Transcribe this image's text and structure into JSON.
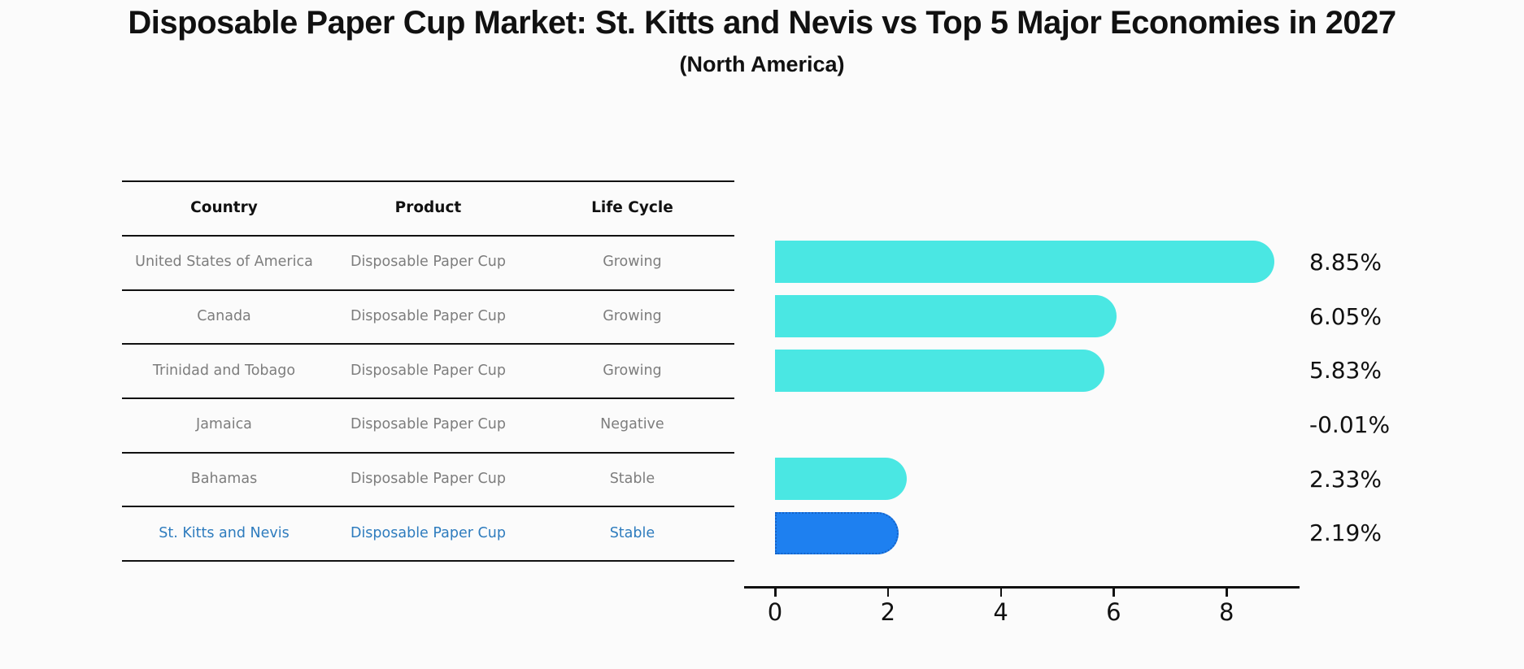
{
  "title": "Disposable Paper Cup Market: St. Kitts and Nevis vs Top 5 Major Economies in 2027",
  "subtitle": "(North America)",
  "table": {
    "headers": [
      "Country",
      "Product",
      "Life Cycle"
    ],
    "rows": [
      {
        "country": "United States of America",
        "product": "Disposable Paper Cup",
        "life_cycle": "Growing"
      },
      {
        "country": "Canada",
        "product": "Disposable Paper Cup",
        "life_cycle": "Growing"
      },
      {
        "country": "Trinidad and Tobago",
        "product": "Disposable Paper Cup",
        "life_cycle": "Growing"
      },
      {
        "country": "Jamaica",
        "product": "Disposable Paper Cup",
        "life_cycle": "Negative"
      },
      {
        "country": "Bahamas",
        "product": "Disposable Paper Cup",
        "life_cycle": "Stable"
      },
      {
        "country": "St. Kitts and Nevis",
        "product": "Disposable Paper Cup",
        "life_cycle": "Stable"
      }
    ]
  },
  "chart_data": {
    "type": "bar",
    "orientation": "horizontal",
    "title": "Disposable Paper Cup Market: St. Kitts and Nevis vs Top 5 Major Economies in 2027",
    "subtitle": "(North America)",
    "categories": [
      "United States of America",
      "Canada",
      "Trinidad and Tobago",
      "Jamaica",
      "Bahamas",
      "St. Kitts and Nevis"
    ],
    "values": [
      8.85,
      6.05,
      5.83,
      -0.01,
      2.33,
      2.19
    ],
    "labels": [
      "8.85%",
      "6.05%",
      "5.83%",
      "-0.01%",
      "2.33%",
      "2.19%"
    ],
    "x_ticks": [
      0,
      2,
      4,
      6,
      8
    ],
    "xlim": [
      -0.55,
      9.3
    ],
    "grid": false,
    "legend": false,
    "highlight_index": 5,
    "highlight_category": "St. Kitts and Nevis"
  },
  "colors": {
    "background": "#fbfbfb",
    "ink": "#111111",
    "row_text": "#7d7d7d",
    "highlight_text": "#2E7CBE",
    "bar_cyan": "#4AE7E3",
    "bar_blue": "#1E80F0",
    "bar_blue_border": "#1563C8"
  }
}
